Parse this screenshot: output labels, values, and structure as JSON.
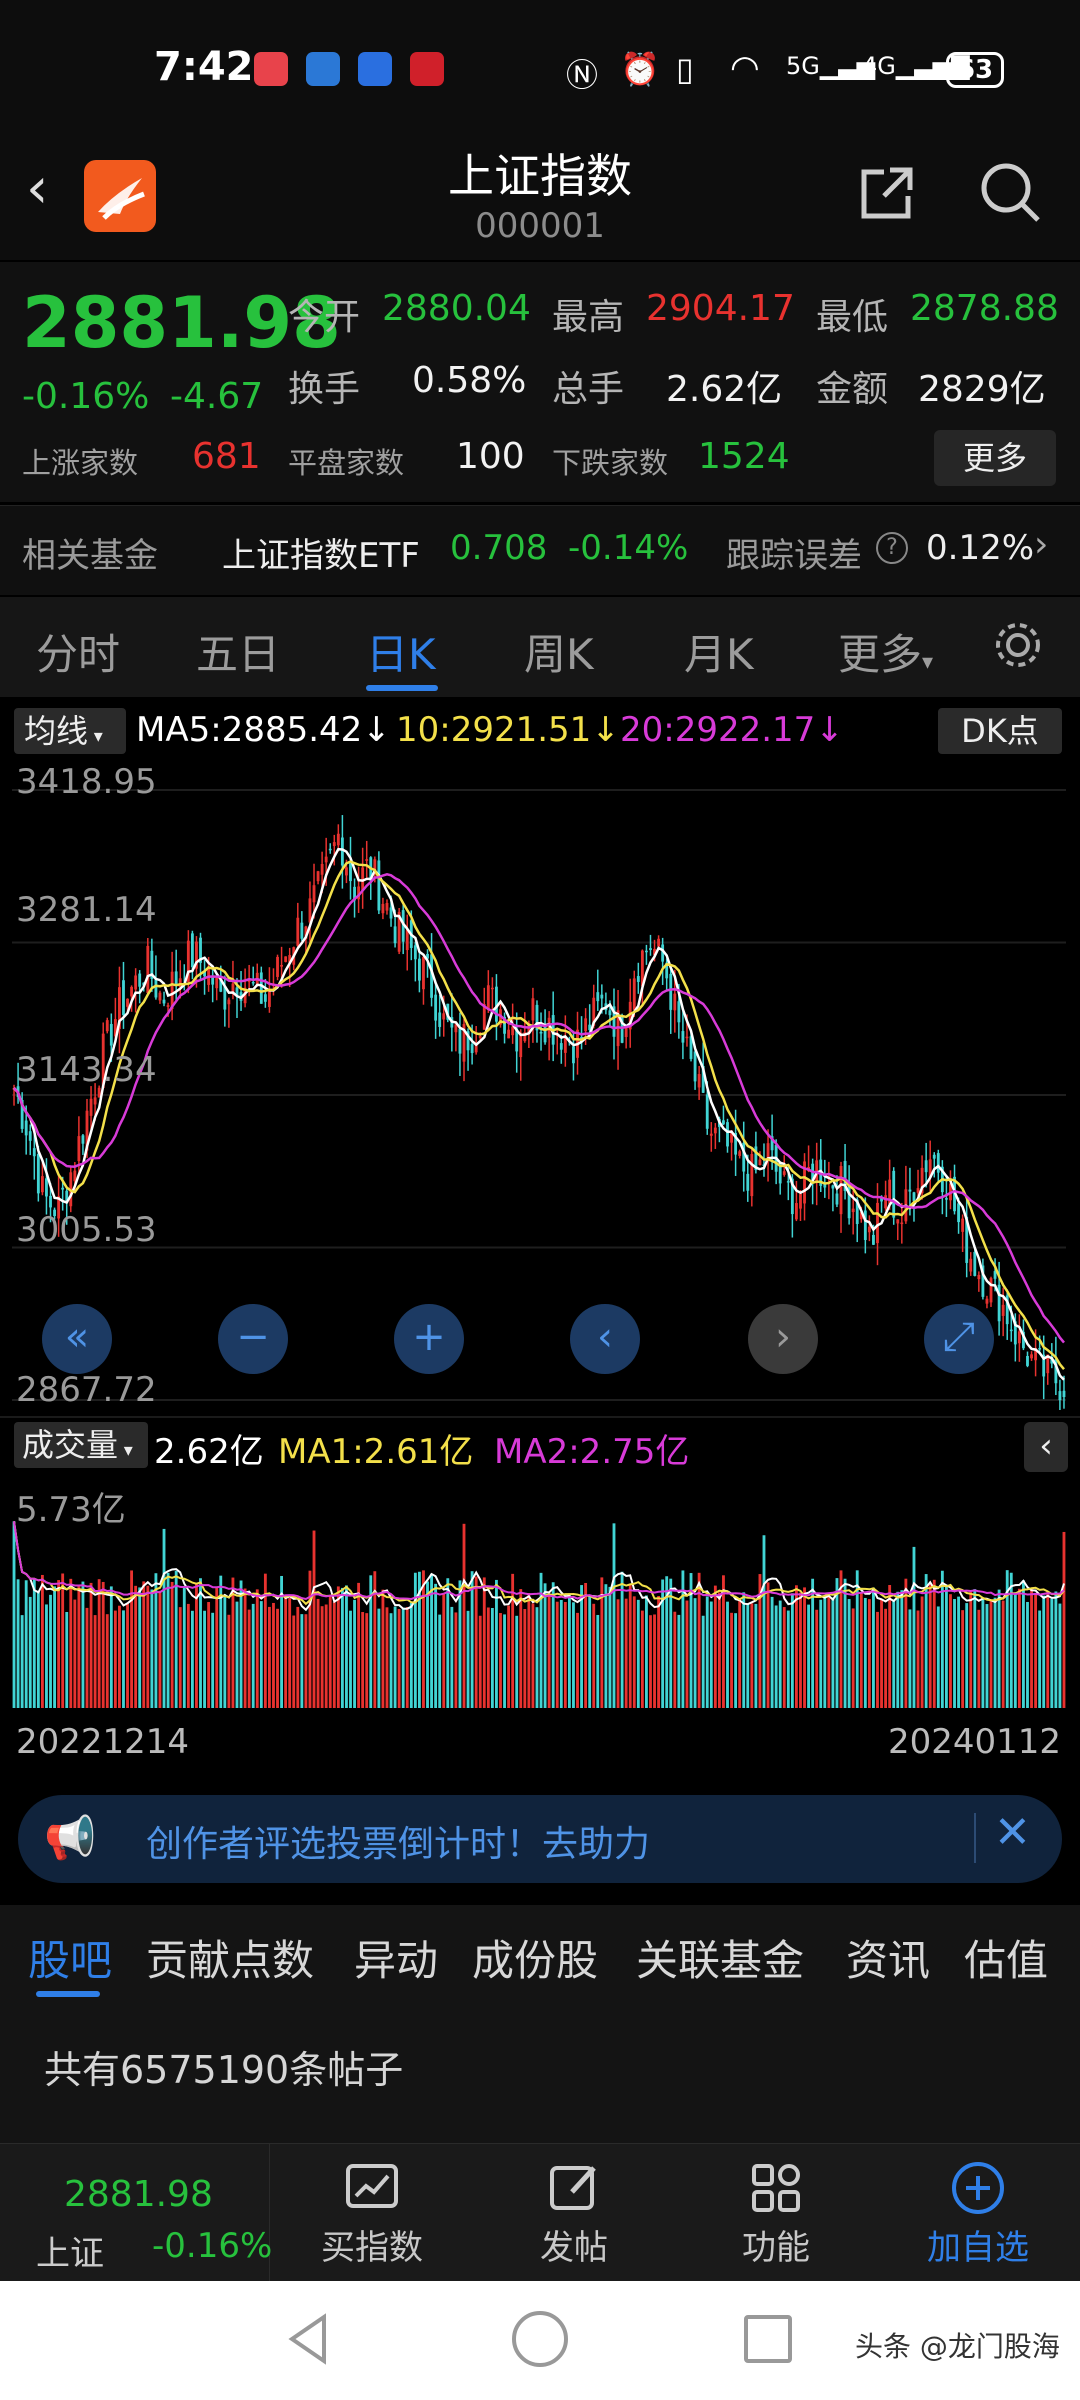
{
  "status_bar": {
    "time": "7:42",
    "battery": "63",
    "network": [
      "5G",
      "4G"
    ]
  },
  "header": {
    "title": "上证指数",
    "code": "000001"
  },
  "quote": {
    "price": "2881.98",
    "change_pct": "-0.16%",
    "change_abs": "-4.67",
    "open_label": "今开",
    "open": "2880.04",
    "high_label": "最高",
    "high": "2904.17",
    "low_label": "最低",
    "low": "2878.88",
    "turnover_label": "换手",
    "turnover": "0.58%",
    "volume_label": "总手",
    "volume": "2.62亿",
    "amount_label": "金额",
    "amount": "2829亿",
    "up_label": "上涨家数",
    "up_count": "681",
    "flat_label": "平盘家数",
    "flat_count": "100",
    "down_label": "下跌家数",
    "down_count": "1524",
    "more_label": "更多"
  },
  "fund": {
    "label": "相关基金",
    "name": "上证指数ETF",
    "price": "0.708",
    "change": "-0.14%",
    "tracking_label": "跟踪误差",
    "tracking_value": "0.12%"
  },
  "tabs": [
    {
      "label": "分时"
    },
    {
      "label": "五日"
    },
    {
      "label": "日K"
    },
    {
      "label": "周K"
    },
    {
      "label": "月K"
    },
    {
      "label": "更多"
    }
  ],
  "ma_bar": {
    "selector": "均线",
    "ma5": "MA5:2885.42",
    "ma10": "10:2921.51",
    "ma20": "20:2922.17",
    "dk_label": "DK点"
  },
  "vol_bar": {
    "selector": "成交量",
    "value": "2.62亿",
    "ma1": "MA1:2.61亿",
    "ma2": "MA2:2.75亿",
    "max_label": "5.73亿"
  },
  "dates": {
    "start": "20221214",
    "end": "20240112"
  },
  "notice": {
    "text": "创作者评选投票倒计时！去助力"
  },
  "subtabs": [
    {
      "label": "股吧"
    },
    {
      "label": "贡献点数"
    },
    {
      "label": "异动"
    },
    {
      "label": "成份股"
    },
    {
      "label": "关联基金"
    },
    {
      "label": "资讯"
    },
    {
      "label": "估值"
    }
  ],
  "posts": {
    "count_text": "共有6575190条帖子"
  },
  "bottom_nav": {
    "mini_price": "2881.98",
    "mini_name": "上证",
    "mini_change": "-0.16%",
    "buy_index": "买指数",
    "post": "发帖",
    "functions": "功能",
    "add_watch": "加自选"
  },
  "watermark": "头条 @龙门股海",
  "colors": {
    "up": "#e8322f",
    "down": "#27c13d",
    "accent": "#2f7fe8",
    "ma5": "#ffffff",
    "ma10": "#f3e04a",
    "ma20": "#d83bd8",
    "candle_down": "#41d4d4"
  },
  "chart_data": {
    "type": "candlestick",
    "y_ticks": [
      "3418.95",
      "3281.14",
      "3143.34",
      "3005.53",
      "2867.72"
    ],
    "ylim": [
      2867.72,
      3418.95
    ],
    "x_range": [
      "20221214",
      "20240112"
    ],
    "close_series": [
      3150,
      3110,
      3050,
      3040,
      3080,
      3130,
      3180,
      3220,
      3240,
      3260,
      3230,
      3250,
      3270,
      3260,
      3230,
      3250,
      3240,
      3230,
      3260,
      3290,
      3310,
      3340,
      3380,
      3330,
      3350,
      3320,
      3290,
      3270,
      3250,
      3210,
      3190,
      3200,
      3230,
      3220,
      3200,
      3220,
      3210,
      3200,
      3190,
      3210,
      3230,
      3200,
      3260,
      3280,
      3260,
      3200,
      3160,
      3110,
      3100,
      3080,
      3070,
      3090,
      3060,
      3050,
      3080,
      3070,
      3060,
      3040,
      3010,
      3060,
      3030,
      3070,
      3090,
      3070,
      3020,
      2990,
      2970,
      2950,
      2920,
      2900,
      2890,
      2882
    ]
  }
}
